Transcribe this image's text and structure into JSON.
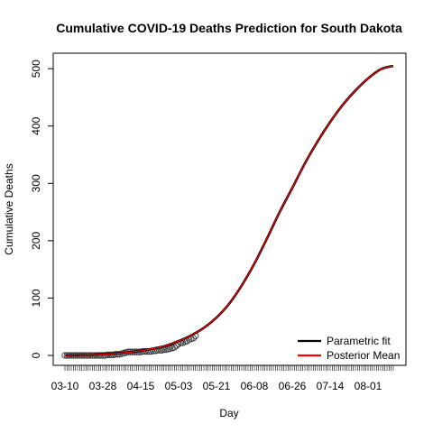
{
  "chart_data": {
    "type": "line",
    "title": "Cumulative COVID-19 Deaths Prediction for South Dakota",
    "xlabel": "Day",
    "ylabel": "Cumulative Deaths",
    "x_tick_labels": [
      "03-10",
      "03-28",
      "04-15",
      "05-03",
      "05-21",
      "06-08",
      "06-26",
      "07-14",
      "08-01"
    ],
    "x_tick_day_index": [
      0,
      18,
      36,
      54,
      72,
      90,
      108,
      126,
      144
    ],
    "y_ticks": [
      0,
      100,
      200,
      300,
      400,
      500
    ],
    "xlim_days": [
      0,
      156
    ],
    "ylim": [
      0,
      505
    ],
    "legend": {
      "position": "bottom-right",
      "entries": [
        {
          "label": "Parametric fit",
          "color": "#000000"
        },
        {
          "label": "Posterior Mean",
          "color": "#ff0000"
        }
      ]
    },
    "series": [
      {
        "name": "Parametric fit",
        "color": "#000000",
        "x": [
          0,
          6,
          12,
          18,
          24,
          30,
          36,
          42,
          48,
          54,
          60,
          66,
          72,
          78,
          84,
          90,
          96,
          102,
          108,
          114,
          120,
          126,
          132,
          138,
          144,
          150,
          156
        ],
        "y": [
          0,
          0.5,
          1,
          2,
          3.5,
          5.5,
          8,
          12,
          17,
          25,
          35,
          48,
          66,
          90,
          122,
          160,
          204,
          250,
          292,
          335,
          373,
          407,
          437,
          462,
          483,
          499,
          505
        ]
      },
      {
        "name": "Posterior Mean",
        "color": "#ff0000",
        "x": [
          0,
          6,
          12,
          18,
          24,
          30,
          36,
          42,
          48,
          54,
          60,
          66,
          72,
          78,
          84,
          90,
          96,
          102,
          108,
          114,
          120,
          126,
          132,
          138,
          144,
          150,
          156
        ],
        "y": [
          0,
          0.5,
          1,
          2,
          3.5,
          5.5,
          8,
          12,
          17,
          25,
          35,
          48,
          66,
          90,
          122,
          160,
          204,
          250,
          292,
          335,
          373,
          407,
          437,
          462,
          483,
          499,
          505
        ]
      }
    ],
    "observed": {
      "marker": "open-circle",
      "x": [
        0,
        1,
        2,
        3,
        4,
        5,
        6,
        7,
        8,
        9,
        10,
        11,
        12,
        13,
        14,
        15,
        16,
        17,
        18,
        19,
        20,
        21,
        22,
        23,
        24,
        25,
        26,
        27,
        28,
        29,
        30,
        31,
        32,
        33,
        34,
        35,
        36,
        37,
        38,
        39,
        40,
        41,
        42,
        43,
        44,
        45,
        46,
        47,
        48,
        49,
        50,
        51,
        52,
        53,
        54,
        55,
        56,
        57,
        58,
        59,
        60,
        61,
        62
      ],
      "y": [
        0,
        0,
        0,
        0,
        0,
        0,
        0,
        0,
        0,
        0,
        0,
        0,
        0,
        0,
        0,
        0,
        0,
        0,
        0,
        0,
        1,
        1,
        1,
        1,
        2,
        2,
        2,
        3,
        4,
        5,
        6,
        6,
        6,
        6,
        6,
        6,
        6,
        7,
        7,
        7,
        7,
        7,
        8,
        8,
        9,
        9,
        9,
        10,
        10,
        11,
        12,
        13,
        14,
        17,
        20,
        22,
        22,
        24,
        25,
        28,
        29,
        30,
        34
      ]
    }
  }
}
